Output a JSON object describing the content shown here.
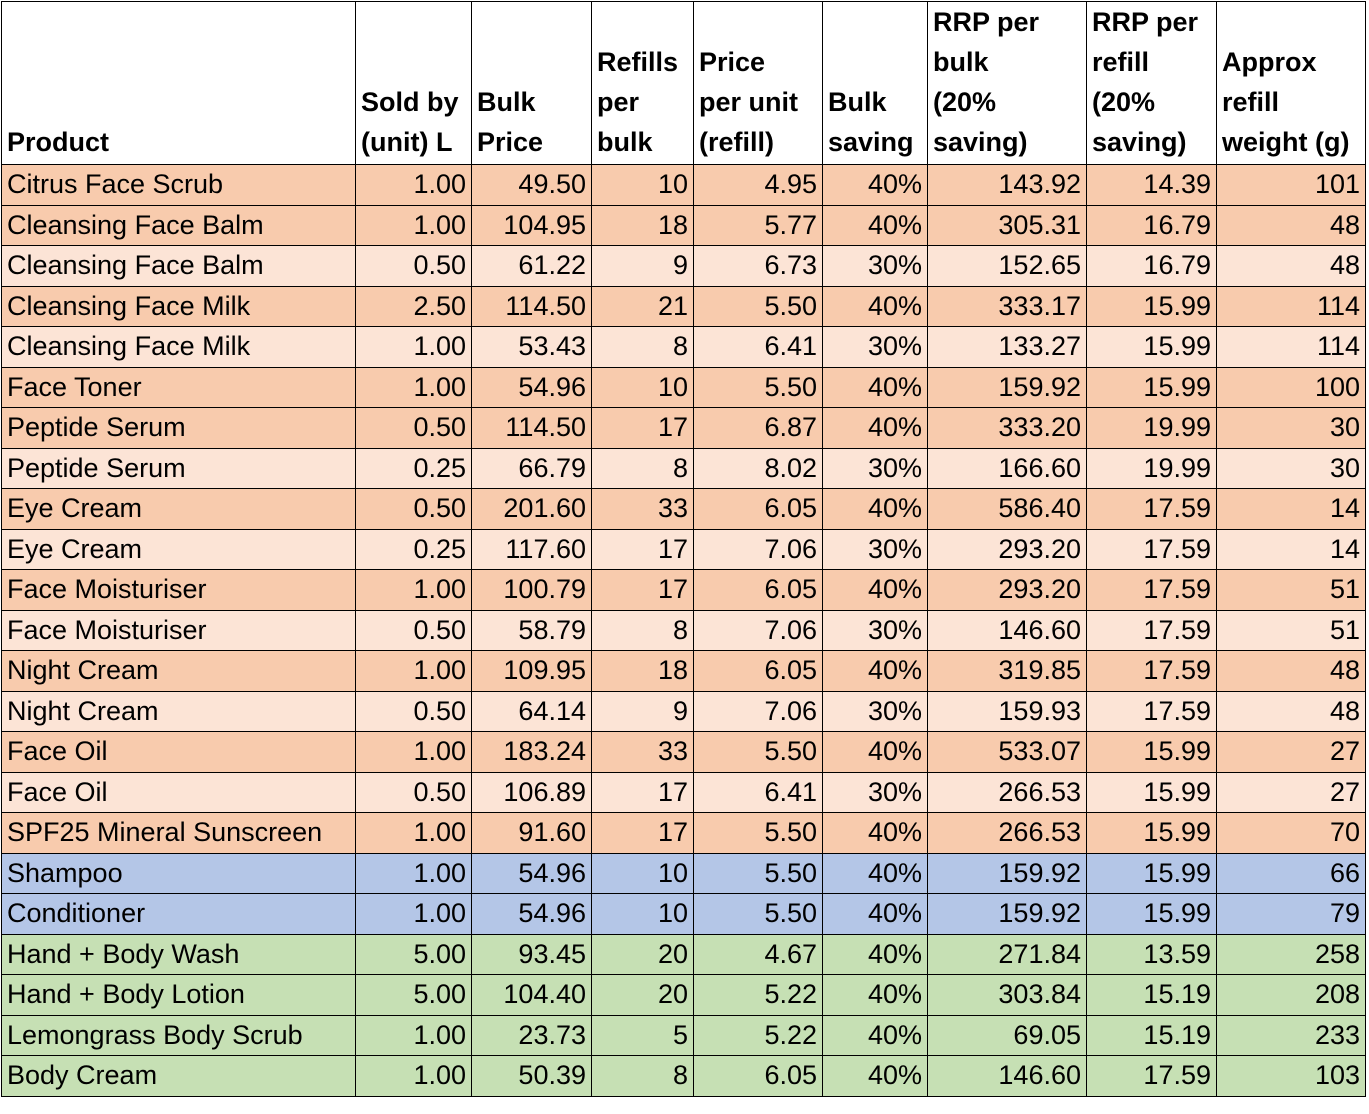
{
  "table": {
    "headers": [
      "Product",
      "Sold by\n(unit) L",
      "Bulk\nPrice",
      "Refills\nper\nbulk",
      "Price\nper unit\n(refill)",
      "Bulk\nsaving",
      "RRP per\nbulk\n(20%\nsaving)",
      "RRP per\nrefill\n(20%\nsaving)",
      "Approx\nrefill\nweight (g)"
    ],
    "rows": [
      {
        "color": "#F8CBAD",
        "cells": [
          "Citrus Face Scrub",
          "1.00",
          "49.50",
          "10",
          "4.95",
          "40%",
          "143.92",
          "14.39",
          "101"
        ]
      },
      {
        "color": "#F8CBAD",
        "cells": [
          "Cleansing Face Balm",
          "1.00",
          "104.95",
          "18",
          "5.77",
          "40%",
          "305.31",
          "16.79",
          "48"
        ]
      },
      {
        "color": "#FCE4D6",
        "cells": [
          "Cleansing Face Balm",
          "0.50",
          "61.22",
          "9",
          "6.73",
          "30%",
          "152.65",
          "16.79",
          "48"
        ]
      },
      {
        "color": "#F8CBAD",
        "cells": [
          "Cleansing Face Milk",
          "2.50",
          "114.50",
          "21",
          "5.50",
          "40%",
          "333.17",
          "15.99",
          "114"
        ]
      },
      {
        "color": "#FCE4D6",
        "cells": [
          "Cleansing Face Milk",
          "1.00",
          "53.43",
          "8",
          "6.41",
          "30%",
          "133.27",
          "15.99",
          "114"
        ]
      },
      {
        "color": "#F8CBAD",
        "cells": [
          "Face Toner",
          "1.00",
          "54.96",
          "10",
          "5.50",
          "40%",
          "159.92",
          "15.99",
          "100"
        ]
      },
      {
        "color": "#F8CBAD",
        "cells": [
          "Peptide Serum",
          "0.50",
          "114.50",
          "17",
          "6.87",
          "40%",
          "333.20",
          "19.99",
          "30"
        ]
      },
      {
        "color": "#FCE4D6",
        "cells": [
          "Peptide Serum",
          "0.25",
          "66.79",
          "8",
          "8.02",
          "30%",
          "166.60",
          "19.99",
          "30"
        ]
      },
      {
        "color": "#F8CBAD",
        "cells": [
          "Eye Cream",
          "0.50",
          "201.60",
          "33",
          "6.05",
          "40%",
          "586.40",
          "17.59",
          "14"
        ]
      },
      {
        "color": "#FCE4D6",
        "cells": [
          "Eye Cream",
          "0.25",
          "117.60",
          "17",
          "7.06",
          "30%",
          "293.20",
          "17.59",
          "14"
        ]
      },
      {
        "color": "#F8CBAD",
        "cells": [
          "Face Moisturiser",
          "1.00",
          "100.79",
          "17",
          "6.05",
          "40%",
          "293.20",
          "17.59",
          "51"
        ]
      },
      {
        "color": "#FCE4D6",
        "cells": [
          "Face Moisturiser",
          "0.50",
          "58.79",
          "8",
          "7.06",
          "30%",
          "146.60",
          "17.59",
          "51"
        ]
      },
      {
        "color": "#F8CBAD",
        "cells": [
          "Night Cream",
          "1.00",
          "109.95",
          "18",
          "6.05",
          "40%",
          "319.85",
          "17.59",
          "48"
        ]
      },
      {
        "color": "#FCE4D6",
        "cells": [
          "Night Cream",
          "0.50",
          "64.14",
          "9",
          "7.06",
          "30%",
          "159.93",
          "17.59",
          "48"
        ]
      },
      {
        "color": "#F8CBAD",
        "cells": [
          "Face Oil",
          "1.00",
          "183.24",
          "33",
          "5.50",
          "40%",
          "533.07",
          "15.99",
          "27"
        ]
      },
      {
        "color": "#FCE4D6",
        "cells": [
          "Face Oil",
          "0.50",
          "106.89",
          "17",
          "6.41",
          "30%",
          "266.53",
          "15.99",
          "27"
        ]
      },
      {
        "color": "#F8CBAD",
        "cells": [
          "SPF25 Mineral Sunscreen",
          "1.00",
          "91.60",
          "17",
          "5.50",
          "40%",
          "266.53",
          "15.99",
          "70"
        ]
      },
      {
        "color": "#B4C6E7",
        "cells": [
          "Shampoo",
          "1.00",
          "54.96",
          "10",
          "5.50",
          "40%",
          "159.92",
          "15.99",
          "66"
        ]
      },
      {
        "color": "#B4C6E7",
        "cells": [
          "Conditioner",
          "1.00",
          "54.96",
          "10",
          "5.50",
          "40%",
          "159.92",
          "15.99",
          "79"
        ]
      },
      {
        "color": "#C6E0B4",
        "cells": [
          "Hand + Body Wash",
          "5.00",
          "93.45",
          "20",
          "4.67",
          "40%",
          "271.84",
          "13.59",
          "258"
        ]
      },
      {
        "color": "#C6E0B4",
        "cells": [
          "Hand + Body Lotion",
          "5.00",
          "104.40",
          "20",
          "5.22",
          "40%",
          "303.84",
          "15.19",
          "208"
        ]
      },
      {
        "color": "#C6E0B4",
        "cells": [
          "Lemongrass Body Scrub",
          "1.00",
          "23.73",
          "5",
          "5.22",
          "40%",
          "69.05",
          "15.19",
          "233"
        ]
      },
      {
        "color": "#C6E0B4",
        "cells": [
          "Body Cream",
          "1.00",
          "50.39",
          "8",
          "6.05",
          "40%",
          "146.60",
          "17.59",
          "103"
        ]
      }
    ]
  }
}
